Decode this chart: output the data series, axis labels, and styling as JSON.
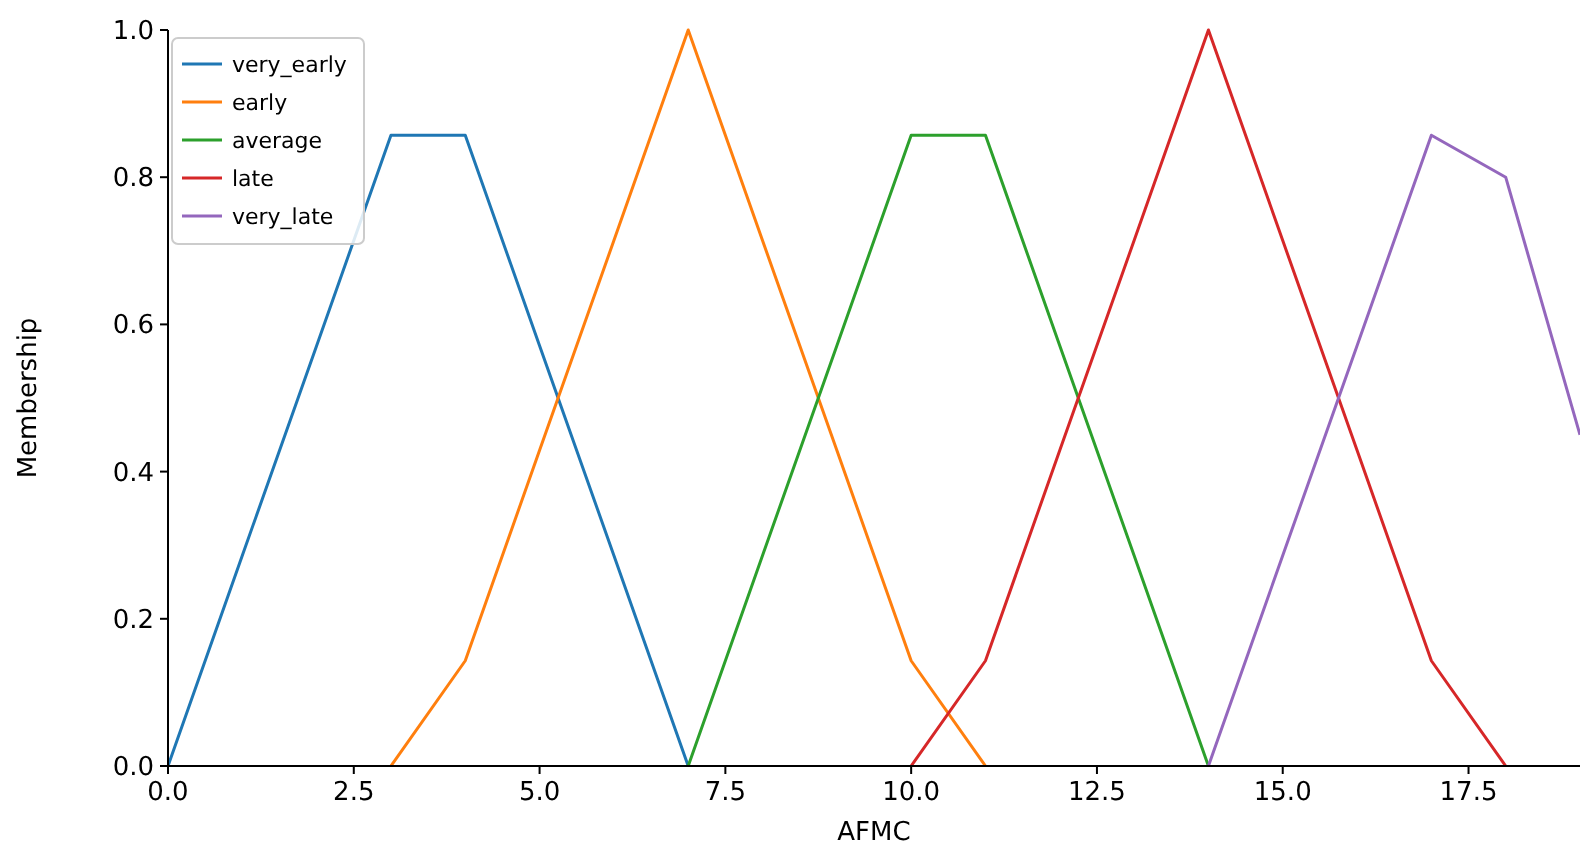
{
  "chart_data": {
    "type": "line",
    "xlabel": "AFMC",
    "ylabel": "Membership",
    "x": [
      0,
      1,
      2,
      3,
      4,
      5,
      6,
      7,
      8,
      9,
      10,
      11,
      12,
      13,
      14,
      15,
      16,
      17,
      18,
      19
    ],
    "series": [
      {
        "name": "very_early",
        "color": "#1f77b4",
        "values": [
          0,
          0.286,
          0.571,
          0.857,
          0.857,
          0.571,
          0.286,
          0,
          null,
          null,
          null,
          null,
          null,
          null,
          null,
          null,
          null,
          null,
          null,
          null
        ]
      },
      {
        "name": "early",
        "color": "#ff7f0e",
        "values": [
          null,
          null,
          null,
          0,
          0.143,
          0.429,
          0.714,
          1,
          0.714,
          0.429,
          0.143,
          0,
          null,
          null,
          null,
          null,
          null,
          null,
          null,
          null
        ]
      },
      {
        "name": "average",
        "color": "#2ca02c",
        "values": [
          null,
          null,
          null,
          null,
          null,
          null,
          null,
          0,
          0.286,
          0.571,
          0.857,
          0.857,
          0.571,
          0.286,
          0,
          null,
          null,
          null,
          null,
          null
        ]
      },
      {
        "name": "late",
        "color": "#d62728",
        "values": [
          null,
          null,
          null,
          null,
          null,
          null,
          null,
          null,
          null,
          null,
          0,
          0.143,
          0.429,
          0.714,
          1,
          0.714,
          0.429,
          0.143,
          0,
          null
        ]
      },
      {
        "name": "very_late",
        "color": "#9467bd",
        "values": [
          null,
          null,
          null,
          null,
          null,
          null,
          null,
          null,
          null,
          null,
          null,
          null,
          null,
          null,
          0,
          0.286,
          0.571,
          0.857,
          0.8,
          0.45
        ]
      }
    ],
    "xlim": [
      0,
      19
    ],
    "ylim": [
      0,
      1
    ],
    "xticks": [
      {
        "value": 0,
        "label": "0.0"
      },
      {
        "value": 2.5,
        "label": "2.5"
      },
      {
        "value": 5,
        "label": "5.0"
      },
      {
        "value": 7.5,
        "label": "7.5"
      },
      {
        "value": 10,
        "label": "10.0"
      },
      {
        "value": 12.5,
        "label": "12.5"
      },
      {
        "value": 15,
        "label": "15.0"
      },
      {
        "value": 17.5,
        "label": "17.5"
      }
    ],
    "yticks": [
      {
        "value": 0,
        "label": "0.0"
      },
      {
        "value": 0.2,
        "label": "0.2"
      },
      {
        "value": 0.4,
        "label": "0.4"
      },
      {
        "value": 0.6,
        "label": "0.6"
      },
      {
        "value": 0.8,
        "label": "0.8"
      },
      {
        "value": 1,
        "label": "1.0"
      }
    ],
    "legend": "top left",
    "grid": false
  }
}
